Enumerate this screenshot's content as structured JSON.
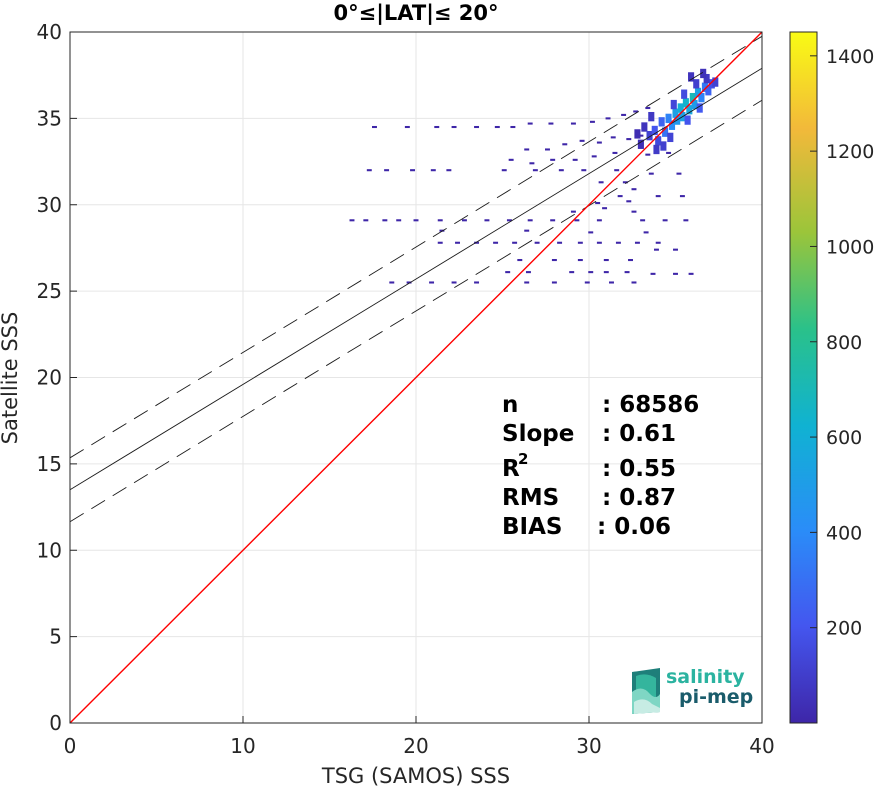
{
  "chart_data": {
    "type": "scatter",
    "title": "0°≤|LAT|≤ 20°",
    "xlabel": "TSG (SAMOS) SSS",
    "ylabel": "Satellite SSS",
    "xlim": [
      0,
      40
    ],
    "ylim": [
      0,
      40
    ],
    "xticks": [
      "0",
      "10",
      "20",
      "30",
      "40"
    ],
    "yticks": [
      "0",
      "5",
      "10",
      "15",
      "20",
      "25",
      "30",
      "35",
      "40"
    ],
    "grid": true,
    "one_to_one_line": {
      "slope": 1,
      "intercept": 0,
      "color": "#ff0000"
    },
    "fit_line": {
      "slope": 0.61,
      "intercept": 13.5
    },
    "fit_band": [
      {
        "slope": 0.61,
        "intercept": 15.35
      },
      {
        "slope": 0.61,
        "intercept": 11.65
      }
    ],
    "density_points": [
      [
        17.6,
        34.5,
        1
      ],
      [
        19.5,
        34.5,
        1
      ],
      [
        21.2,
        34.5,
        1
      ],
      [
        22.2,
        34.5,
        1
      ],
      [
        23.5,
        34.5,
        1
      ],
      [
        24.7,
        34.5,
        1
      ],
      [
        25.6,
        34.5,
        1
      ],
      [
        26.6,
        34.7,
        1
      ],
      [
        27.8,
        34.7,
        1
      ],
      [
        29.1,
        34.7,
        1
      ],
      [
        30.2,
        34.8,
        1
      ],
      [
        31.1,
        35.0,
        1
      ],
      [
        32.0,
        35.2,
        1
      ],
      [
        32.7,
        35.4,
        1
      ],
      [
        33.4,
        35.6,
        1
      ],
      [
        26.4,
        33.2,
        1
      ],
      [
        27.6,
        33.2,
        1
      ],
      [
        28.6,
        33.5,
        1
      ],
      [
        29.6,
        33.7,
        1
      ],
      [
        30.6,
        33.6,
        1
      ],
      [
        31.4,
        33.9,
        1
      ],
      [
        32.3,
        33.8,
        1
      ],
      [
        33.0,
        34.0,
        1
      ],
      [
        25.5,
        32.6,
        1
      ],
      [
        26.7,
        32.4,
        1
      ],
      [
        27.9,
        32.6,
        1
      ],
      [
        29.2,
        32.6,
        1
      ],
      [
        30.3,
        32.8,
        1
      ],
      [
        31.5,
        33.0,
        1
      ],
      [
        33.4,
        32.9,
        1
      ],
      [
        34.6,
        33.0,
        1
      ],
      [
        17.3,
        32.0,
        1
      ],
      [
        18.3,
        32.0,
        1
      ],
      [
        19.8,
        32.0,
        1
      ],
      [
        21.0,
        32.0,
        1
      ],
      [
        21.9,
        32.0,
        1
      ],
      [
        25.1,
        32.0,
        1
      ],
      [
        26.9,
        32.0,
        1
      ],
      [
        28.4,
        32.0,
        1
      ],
      [
        29.7,
        32.0,
        1
      ],
      [
        31.6,
        32.0,
        1
      ],
      [
        33.6,
        31.8,
        1
      ],
      [
        35.2,
        31.8,
        1
      ],
      [
        30.7,
        31.3,
        1
      ],
      [
        32.1,
        31.3,
        1
      ],
      [
        32.6,
        30.9,
        1
      ],
      [
        31.8,
        30.5,
        1
      ],
      [
        30.5,
        30.1,
        1
      ],
      [
        32.3,
        30.2,
        1
      ],
      [
        34.0,
        30.5,
        1
      ],
      [
        35.4,
        30.5,
        1
      ],
      [
        29.1,
        29.6,
        1
      ],
      [
        30.9,
        29.8,
        1
      ],
      [
        32.6,
        29.6,
        1
      ],
      [
        16.3,
        29.1,
        1
      ],
      [
        17.1,
        29.1,
        1
      ],
      [
        18.2,
        29.1,
        1
      ],
      [
        19.0,
        29.1,
        1
      ],
      [
        20.0,
        29.1,
        1
      ],
      [
        21.4,
        29.1,
        1
      ],
      [
        22.8,
        29.1,
        1
      ],
      [
        24.1,
        29.1,
        1
      ],
      [
        25.4,
        29.1,
        1
      ],
      [
        26.6,
        29.1,
        1
      ],
      [
        27.9,
        29.1,
        1
      ],
      [
        29.3,
        29.1,
        1
      ],
      [
        30.6,
        29.1,
        1
      ],
      [
        33.1,
        29.1,
        1
      ],
      [
        34.4,
        29.1,
        1
      ],
      [
        35.6,
        29.1,
        1
      ],
      [
        21.5,
        28.5,
        1
      ],
      [
        26.4,
        28.5,
        1
      ],
      [
        30.1,
        28.4,
        1
      ],
      [
        33.3,
        28.4,
        1
      ],
      [
        21.4,
        27.8,
        1
      ],
      [
        22.4,
        27.8,
        1
      ],
      [
        23.5,
        27.8,
        1
      ],
      [
        24.6,
        27.8,
        1
      ],
      [
        25.7,
        27.8,
        1
      ],
      [
        27.0,
        27.8,
        1
      ],
      [
        28.3,
        27.8,
        1
      ],
      [
        29.5,
        27.8,
        1
      ],
      [
        30.6,
        27.8,
        1
      ],
      [
        31.7,
        27.8,
        1
      ],
      [
        32.8,
        27.8,
        1
      ],
      [
        34.0,
        27.8,
        1
      ],
      [
        33.9,
        27.4,
        1
      ],
      [
        35.0,
        27.4,
        1
      ],
      [
        26.0,
        26.8,
        1
      ],
      [
        28.0,
        26.8,
        1
      ],
      [
        29.5,
        26.8,
        1
      ],
      [
        31.0,
        26.8,
        1
      ],
      [
        32.4,
        26.8,
        1
      ],
      [
        25.3,
        26.1,
        1
      ],
      [
        26.5,
        26.1,
        1
      ],
      [
        29.0,
        26.1,
        1
      ],
      [
        30.1,
        26.1,
        1
      ],
      [
        31.0,
        26.1,
        1
      ],
      [
        32.2,
        26.1,
        1
      ],
      [
        33.7,
        26.0,
        1
      ],
      [
        35.0,
        26.0,
        1
      ],
      [
        35.9,
        26.0,
        1
      ],
      [
        18.6,
        25.5,
        1
      ],
      [
        19.6,
        25.5,
        1
      ],
      [
        20.9,
        25.5,
        1
      ],
      [
        22.2,
        25.5,
        1
      ],
      [
        23.5,
        25.5,
        1
      ],
      [
        26.4,
        25.5,
        1
      ],
      [
        28.0,
        25.5,
        1
      ],
      [
        29.9,
        25.5,
        1
      ],
      [
        31.3,
        25.5,
        1
      ],
      [
        32.6,
        25.5,
        1
      ],
      [
        33.2,
        34.5,
        60
      ],
      [
        33.5,
        34.0,
        120
      ],
      [
        33.8,
        34.3,
        200
      ],
      [
        34.0,
        33.7,
        150
      ],
      [
        34.2,
        34.8,
        260
      ],
      [
        34.4,
        34.2,
        320
      ],
      [
        34.6,
        35.0,
        380
      ],
      [
        34.8,
        34.6,
        420
      ],
      [
        35.0,
        35.3,
        520
      ],
      [
        35.1,
        34.9,
        480
      ],
      [
        35.3,
        35.6,
        600
      ],
      [
        35.4,
        35.1,
        520
      ],
      [
        35.6,
        35.9,
        640
      ],
      [
        35.8,
        35.5,
        560
      ],
      [
        36.0,
        36.2,
        700
      ],
      [
        36.1,
        35.8,
        500
      ],
      [
        36.3,
        36.5,
        520
      ],
      [
        36.5,
        36.2,
        380
      ],
      [
        36.7,
        36.8,
        340
      ],
      [
        36.9,
        36.6,
        260
      ],
      [
        37.1,
        37.0,
        180
      ],
      [
        37.3,
        37.1,
        120
      ],
      [
        33.9,
        33.2,
        90
      ],
      [
        34.3,
        33.4,
        110
      ],
      [
        34.7,
        33.9,
        130
      ],
      [
        33.6,
        35.1,
        80
      ],
      [
        34.9,
        35.8,
        140
      ],
      [
        35.5,
        36.4,
        160
      ],
      [
        36.2,
        37.0,
        110
      ],
      [
        36.8,
        37.3,
        80
      ],
      [
        35.7,
        34.9,
        200
      ],
      [
        36.4,
        35.6,
        220
      ],
      [
        33.0,
        33.5,
        40
      ],
      [
        32.8,
        34.1,
        30
      ],
      [
        35.9,
        37.4,
        60
      ],
      [
        36.6,
        37.6,
        50
      ]
    ],
    "colorbar": {
      "ticks": [
        "200",
        "400",
        "600",
        "800",
        "1000",
        "1200",
        "1400"
      ],
      "range": [
        0,
        1450
      ],
      "colors": [
        "#3e26a8",
        "#4456ef",
        "#2a8df8",
        "#10b2d2",
        "#2ac18a",
        "#9bc53a",
        "#f2b93a",
        "#f9fb14"
      ]
    }
  },
  "stats": {
    "n_label": "n",
    "n_value": ": 68586",
    "slope_label": "Slope",
    "slope_value": ": 0.61",
    "r2_label": "R",
    "r2_sup": "2",
    "r2_value": ": 0.55",
    "rms_label": "RMS",
    "rms_value": ": 0.87",
    "bias_label": "BIAS",
    "bias_value": ": 0.06"
  },
  "logo": {
    "line1": "salinity",
    "line2": "pi-mep",
    "color_top": "#2bb3a0",
    "color_bottom": "#1a5c6b"
  }
}
